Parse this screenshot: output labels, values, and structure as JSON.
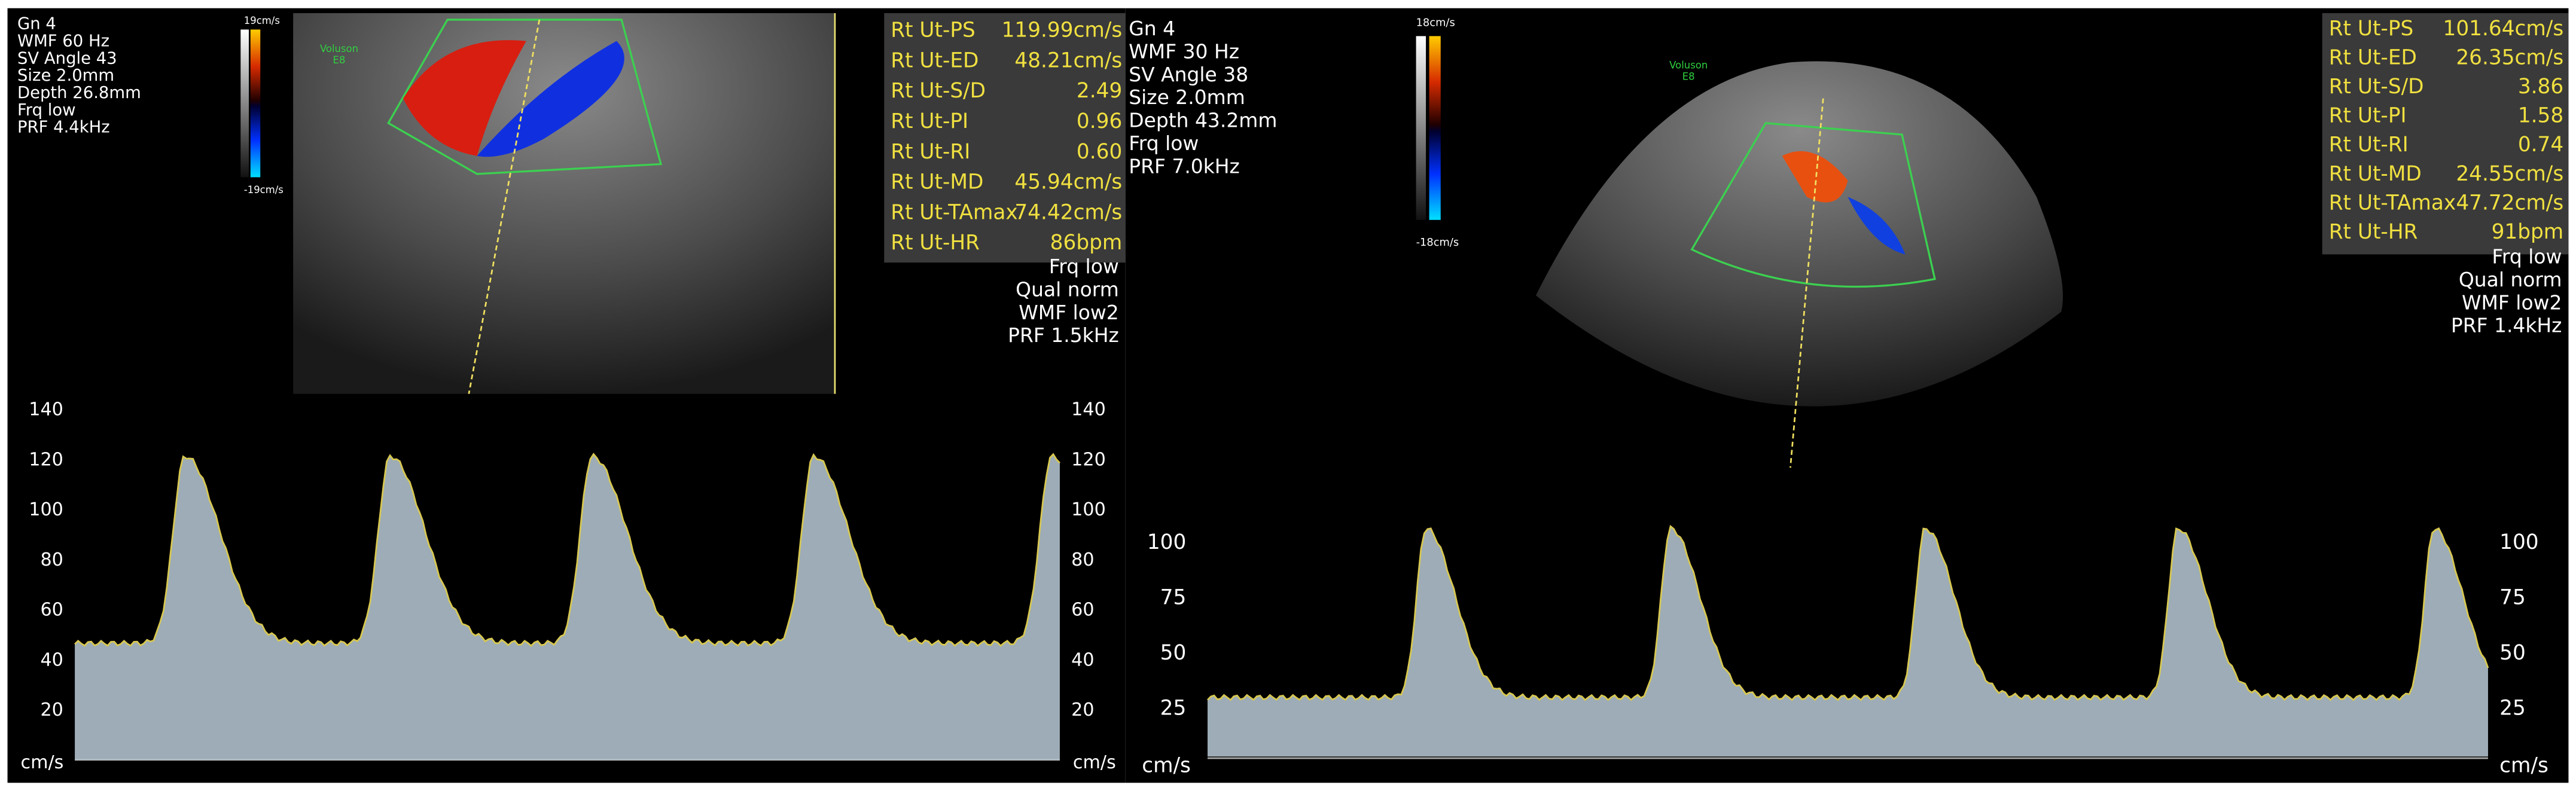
{
  "left": {
    "header": [
      "Gn  4",
      "WMF 60 Hz",
      "SV Angle 43",
      "Size  2.0mm",
      "Depth 26.8mm",
      "Frq low",
      "PRF  4.4kHz"
    ],
    "color_scale": {
      "max": "19cm/s",
      "min": "-19cm/s"
    },
    "brand": [
      "Voluson",
      "E8"
    ],
    "measurements": [
      {
        "label": "Rt Ut-PS",
        "value": "119.99cm/s"
      },
      {
        "label": "Rt Ut-ED",
        "value": "48.21cm/s"
      },
      {
        "label": "Rt Ut-S/D",
        "value": "2.49"
      },
      {
        "label": "Rt Ut-PI",
        "value": "0.96"
      },
      {
        "label": "Rt Ut-RI",
        "value": "0.60"
      },
      {
        "label": "Rt Ut-MD",
        "value": "45.94cm/s"
      },
      {
        "label": "Rt Ut-TAmax",
        "value": "74.42cm/s"
      },
      {
        "label": "Rt Ut-HR",
        "value": "86bpm"
      }
    ],
    "settings": [
      "Frq low",
      "Qual norm",
      "WMF low2",
      "PRF  1.5kHz"
    ],
    "spectrum": {
      "yticks": [
        140,
        120,
        100,
        80,
        60,
        40,
        20
      ],
      "unit": "cm/s"
    }
  },
  "right": {
    "header": [
      "Gn  4",
      "WMF 30 Hz",
      "SV Angle 38",
      "Size  2.0mm",
      "Depth 43.2mm",
      "Frq low",
      "PRF  7.0kHz"
    ],
    "color_scale": {
      "max": "18cm/s",
      "min": "-18cm/s"
    },
    "brand": [
      "Voluson",
      "E8"
    ],
    "measurements": [
      {
        "label": "Rt Ut-PS",
        "value": "101.64cm/s"
      },
      {
        "label": "Rt Ut-ED",
        "value": "26.35cm/s"
      },
      {
        "label": "Rt Ut-S/D",
        "value": "3.86"
      },
      {
        "label": "Rt Ut-PI",
        "value": "1.58"
      },
      {
        "label": "Rt Ut-RI",
        "value": "0.74"
      },
      {
        "label": "Rt Ut-MD",
        "value": "24.55cm/s"
      },
      {
        "label": "Rt Ut-TAmax",
        "value": "47.72cm/s"
      },
      {
        "label": "Rt Ut-HR",
        "value": "91bpm"
      }
    ],
    "settings": [
      "Frq low",
      "Qual norm",
      "WMF low2",
      "PRF  1.4kHz"
    ],
    "spectrum": {
      "yticks": [
        100,
        75,
        50,
        25
      ],
      "unit": "cm/s"
    }
  }
}
